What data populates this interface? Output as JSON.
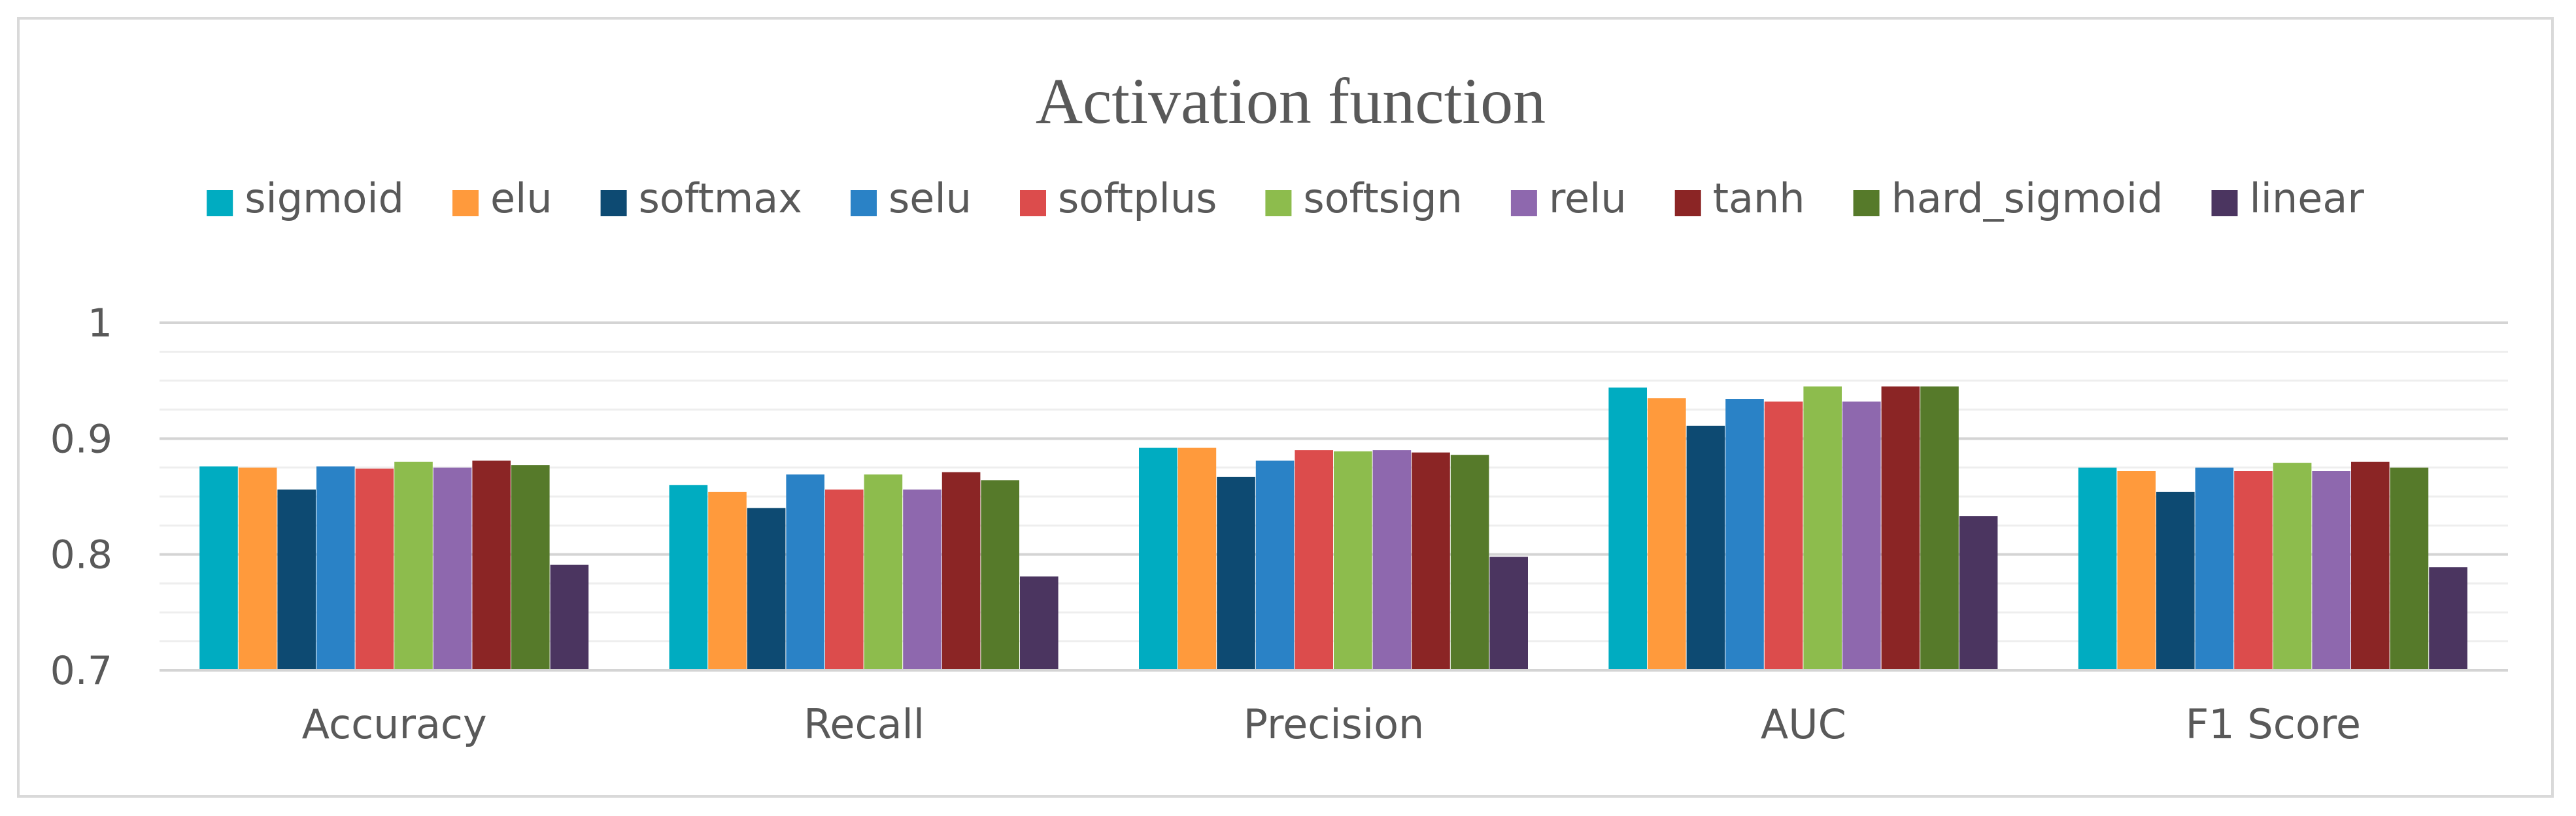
{
  "chart_data": {
    "type": "bar",
    "title": "Activation function",
    "xlabel": "",
    "ylabel": "",
    "ylim": [
      0.7,
      1
    ],
    "yticks": [
      "0.7",
      "0.8",
      "0.9",
      "1"
    ],
    "grid": true,
    "legend_position": "top",
    "categories": [
      "Accuracy",
      "Recall",
      "Precision",
      "AUC",
      "F1 Score"
    ],
    "series": [
      {
        "name": "sigmoid",
        "color": "#00acc1",
        "values": [
          0.876,
          0.86,
          0.892,
          0.944,
          0.875
        ]
      },
      {
        "name": "elu",
        "color": "#ff9a3c",
        "values": [
          0.875,
          0.854,
          0.892,
          0.935,
          0.872
        ]
      },
      {
        "name": "softmax",
        "color": "#0d4a72",
        "values": [
          0.856,
          0.84,
          0.867,
          0.911,
          0.854
        ]
      },
      {
        "name": "selu",
        "color": "#2a82c6",
        "values": [
          0.876,
          0.869,
          0.881,
          0.934,
          0.875
        ]
      },
      {
        "name": "softplus",
        "color": "#dc4c4c",
        "values": [
          0.874,
          0.856,
          0.89,
          0.932,
          0.872
        ]
      },
      {
        "name": "softsign",
        "color": "#8dbc4d",
        "values": [
          0.88,
          0.869,
          0.889,
          0.945,
          0.879
        ]
      },
      {
        "name": "relu",
        "color": "#8e68ae",
        "values": [
          0.875,
          0.856,
          0.89,
          0.932,
          0.872
        ]
      },
      {
        "name": "tanh",
        "color": "#8b2525",
        "values": [
          0.881,
          0.871,
          0.888,
          0.945,
          0.88
        ]
      },
      {
        "name": "hard_sigmoid",
        "color": "#567a2a",
        "values": [
          0.877,
          0.864,
          0.886,
          0.945,
          0.875
        ]
      },
      {
        "name": "linear",
        "color": "#4b3560",
        "values": [
          0.791,
          0.781,
          0.798,
          0.833,
          0.789
        ]
      }
    ]
  }
}
